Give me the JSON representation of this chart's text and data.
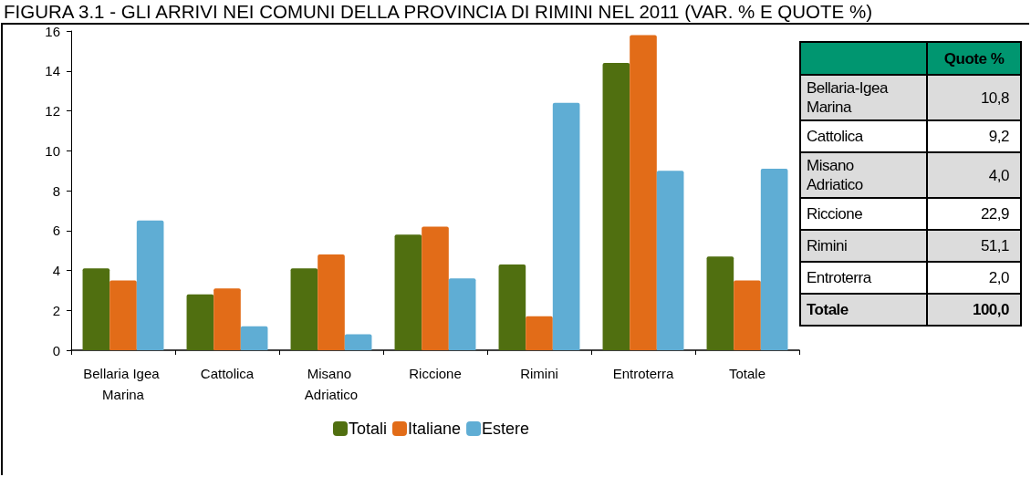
{
  "chart_data": [
    {
      "type": "bar",
      "title": "FIGURA 3.1 - GLI ARRIVI NEI COMUNI DELLA PROVINCIA DI RIMINI NEL 2011 (VAR. % E QUOTE %)",
      "categories": [
        "Bellaria Igea Marina",
        "Cattolica",
        "Misano Adriatico",
        "Riccione",
        "Rimini",
        "Entroterra",
        "Totale"
      ],
      "series": [
        {
          "name": "Totali",
          "color": "#506f10",
          "values": [
            4.1,
            2.8,
            4.1,
            5.8,
            4.3,
            14.4,
            4.7
          ]
        },
        {
          "name": "Italiane",
          "color": "#e26c18",
          "values": [
            3.5,
            3.1,
            4.8,
            6.2,
            1.7,
            15.8,
            3.5
          ]
        },
        {
          "name": "Estere",
          "color": "#5fadd4",
          "values": [
            6.5,
            1.2,
            0.8,
            3.6,
            12.4,
            9.0,
            9.1
          ]
        }
      ],
      "ylim": [
        0,
        16
      ],
      "yticks": [
        0,
        2,
        4,
        6,
        8,
        10,
        12,
        14,
        16
      ],
      "legend": "bottom"
    },
    {
      "type": "other",
      "title": "Quote %",
      "categories": [
        "Bellaria-Igea Marina",
        "Cattolica",
        "Misano Adriatico",
        "Riccione",
        "Rimini",
        "Entroterra",
        "Totale"
      ],
      "value_labels": [
        "10,8",
        "9,2",
        "4,0",
        "22,9",
        "51,1",
        "2,0",
        "100,0"
      ]
    }
  ]
}
